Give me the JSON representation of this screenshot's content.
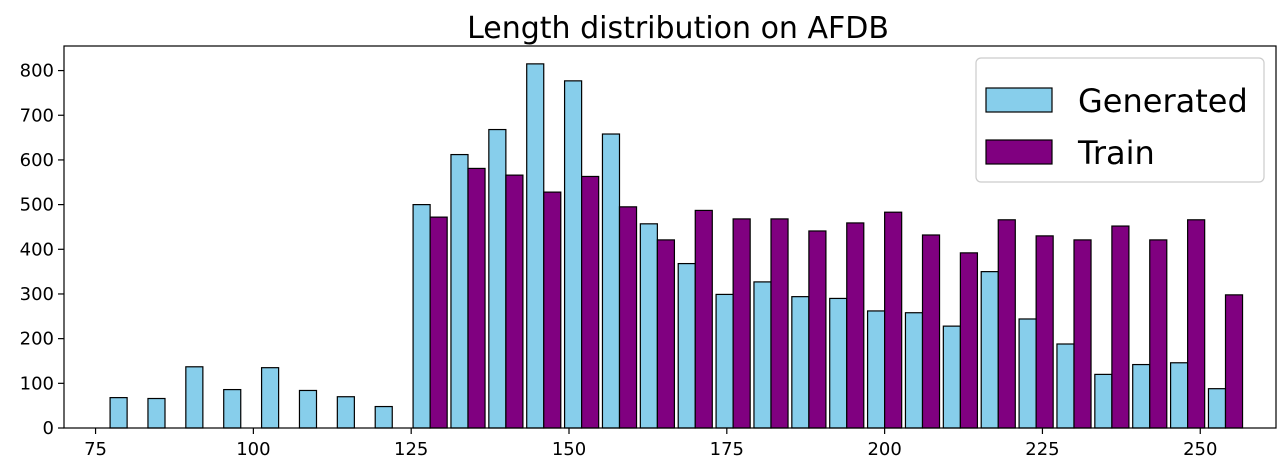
{
  "chart_data": {
    "type": "bar",
    "title": "Length distribution on AFDB",
    "xlabel": "",
    "ylabel": "",
    "xlim": [
      70,
      262
    ],
    "ylim": [
      0,
      855
    ],
    "bin_width": 6,
    "x_ticks": [
      75,
      100,
      125,
      150,
      175,
      200,
      225,
      250
    ],
    "y_ticks": [
      0,
      100,
      200,
      300,
      400,
      500,
      600,
      700,
      800
    ],
    "legend_position": "top-right",
    "grid": false,
    "series": [
      {
        "name": "Generated",
        "color": "#87ceeb",
        "edge_color": "#000000",
        "bins": [
          {
            "x": 80,
            "value": 68
          },
          {
            "x": 86,
            "value": 66
          },
          {
            "x": 92,
            "value": 137
          },
          {
            "x": 98,
            "value": 86
          },
          {
            "x": 104,
            "value": 135
          },
          {
            "x": 110,
            "value": 84
          },
          {
            "x": 116,
            "value": 70
          },
          {
            "x": 122,
            "value": 48
          },
          {
            "x": 128,
            "value": 500
          },
          {
            "x": 134,
            "value": 612
          },
          {
            "x": 140,
            "value": 668
          },
          {
            "x": 146,
            "value": 815
          },
          {
            "x": 152,
            "value": 777
          },
          {
            "x": 158,
            "value": 658
          },
          {
            "x": 164,
            "value": 457
          },
          {
            "x": 170,
            "value": 368
          },
          {
            "x": 176,
            "value": 299
          },
          {
            "x": 182,
            "value": 327
          },
          {
            "x": 188,
            "value": 294
          },
          {
            "x": 194,
            "value": 290
          },
          {
            "x": 200,
            "value": 262
          },
          {
            "x": 206,
            "value": 258
          },
          {
            "x": 212,
            "value": 228
          },
          {
            "x": 218,
            "value": 350
          },
          {
            "x": 224,
            "value": 244
          },
          {
            "x": 230,
            "value": 188
          },
          {
            "x": 236,
            "value": 120
          },
          {
            "x": 242,
            "value": 142
          },
          {
            "x": 248,
            "value": 146
          },
          {
            "x": 254,
            "value": 88
          }
        ]
      },
      {
        "name": "Train",
        "color": "#800080",
        "edge_color": "#000000",
        "bins": [
          {
            "x": 80,
            "value": 0
          },
          {
            "x": 86,
            "value": 0
          },
          {
            "x": 92,
            "value": 0
          },
          {
            "x": 98,
            "value": 0
          },
          {
            "x": 104,
            "value": 0
          },
          {
            "x": 110,
            "value": 0
          },
          {
            "x": 116,
            "value": 0
          },
          {
            "x": 122,
            "value": 0
          },
          {
            "x": 128,
            "value": 472
          },
          {
            "x": 134,
            "value": 581
          },
          {
            "x": 140,
            "value": 566
          },
          {
            "x": 146,
            "value": 528
          },
          {
            "x": 152,
            "value": 563
          },
          {
            "x": 158,
            "value": 495
          },
          {
            "x": 164,
            "value": 421
          },
          {
            "x": 170,
            "value": 487
          },
          {
            "x": 176,
            "value": 468
          },
          {
            "x": 182,
            "value": 468
          },
          {
            "x": 188,
            "value": 441
          },
          {
            "x": 194,
            "value": 459
          },
          {
            "x": 200,
            "value": 483
          },
          {
            "x": 206,
            "value": 432
          },
          {
            "x": 212,
            "value": 392
          },
          {
            "x": 218,
            "value": 466
          },
          {
            "x": 224,
            "value": 430
          },
          {
            "x": 230,
            "value": 421
          },
          {
            "x": 236,
            "value": 452
          },
          {
            "x": 242,
            "value": 421
          },
          {
            "x": 248,
            "value": 466
          },
          {
            "x": 254,
            "value": 298
          }
        ]
      }
    ]
  }
}
